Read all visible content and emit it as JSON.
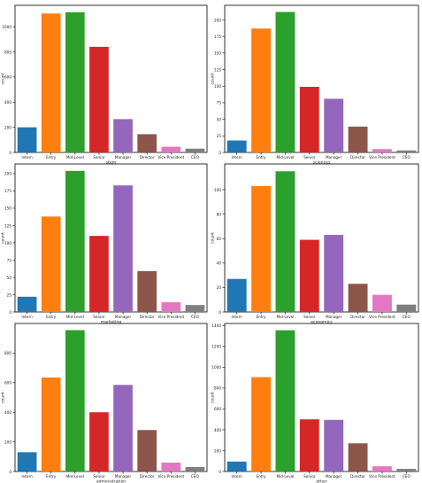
{
  "chart_data": [
    {
      "type": "bar",
      "xlabel": "stem",
      "ylabel": "count",
      "categories": [
        "Intern",
        "Entry",
        "Mid-Level",
        "Senior",
        "Manager",
        "Director",
        "Vice President",
        "CEO"
      ],
      "values": [
        200,
        1105,
        1115,
        840,
        265,
        145,
        45,
        30
      ],
      "ylim": [
        0,
        1170
      ],
      "yticks": [
        0,
        200,
        400,
        600,
        800,
        1000
      ]
    },
    {
      "type": "bar",
      "xlabel": "sciences",
      "ylabel": "count",
      "categories": [
        "Intern",
        "Entry",
        "Mid-Level",
        "Senior",
        "Manager",
        "Director",
        "Vice President",
        "CEO"
      ],
      "values": [
        18,
        187,
        212,
        99,
        81,
        39,
        5,
        3
      ],
      "ylim": [
        0,
        222
      ],
      "yticks": [
        0,
        25,
        50,
        75,
        100,
        125,
        150,
        175,
        200
      ]
    },
    {
      "type": "bar",
      "xlabel": "marketing",
      "ylabel": "count",
      "categories": [
        "Intern",
        "Entry",
        "Mid-Level",
        "Senior",
        "Manager",
        "Director",
        "Vice President",
        "CEO"
      ],
      "values": [
        22,
        138,
        204,
        110,
        183,
        59,
        14,
        10
      ],
      "ylim": [
        0,
        214
      ],
      "yticks": [
        0,
        25,
        50,
        75,
        100,
        125,
        150,
        175,
        200
      ]
    },
    {
      "type": "bar",
      "xlabel": "economics",
      "ylabel": "count",
      "categories": [
        "Intern",
        "Entry",
        "Mid-Level",
        "Senior",
        "Manager",
        "Director",
        "Vice President",
        "CEO"
      ],
      "values": [
        27,
        103,
        115,
        59,
        63,
        23,
        14,
        6
      ],
      "ylim": [
        0,
        121
      ],
      "yticks": [
        0,
        20,
        40,
        60,
        80,
        100
      ]
    },
    {
      "type": "bar",
      "xlabel": "administration",
      "ylabel": "count",
      "categories": [
        "Intern",
        "Entry",
        "Mid-Level",
        "Senior",
        "Manager",
        "Director",
        "Vice President",
        "CEO"
      ],
      "values": [
        130,
        635,
        955,
        400,
        585,
        280,
        60,
        30
      ],
      "ylim": [
        0,
        1000
      ],
      "yticks": [
        0,
        200,
        400,
        600,
        800
      ]
    },
    {
      "type": "bar",
      "xlabel": "other",
      "ylabel": "count",
      "categories": [
        "Intern",
        "Entry",
        "Mid-Level",
        "Senior",
        "Manager",
        "Director",
        "Vice President",
        "CEO"
      ],
      "values": [
        95,
        905,
        1355,
        500,
        495,
        270,
        50,
        25
      ],
      "ylim": [
        0,
        1420
      ],
      "yticks": [
        0,
        200,
        400,
        600,
        800,
        1000,
        1200,
        1400
      ]
    }
  ],
  "colors": [
    "#1f77b4",
    "#ff7f0e",
    "#2ca02c",
    "#d62728",
    "#9467bd",
    "#8c564b",
    "#e377c2",
    "#7f7f7f"
  ]
}
